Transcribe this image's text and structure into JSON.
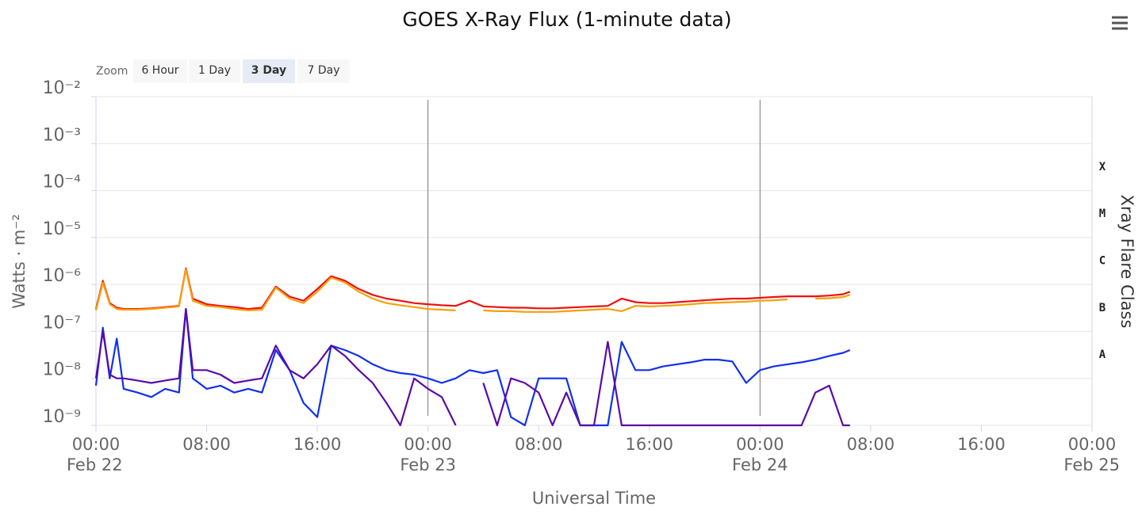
{
  "chart_data": {
    "type": "line",
    "title": "GOES X-Ray Flux (1-minute data)",
    "zoom": {
      "label": "Zoom",
      "buttons": [
        "6 Hour",
        "1 Day",
        "3 Day",
        "7 Day"
      ],
      "selected": 2
    },
    "ylabel": "Watts · m⁻²",
    "xlabel": "Universal Time",
    "y2label": "Xray Flare Class",
    "log": true,
    "grid": true,
    "xlim": [
      0,
      72
    ],
    "xticks": [
      {
        "value": 0,
        "label": "00:00"
      },
      {
        "value": 8,
        "label": "08:00"
      },
      {
        "value": 16,
        "label": "16:00"
      },
      {
        "value": 24,
        "label": "00:00"
      },
      {
        "value": 32,
        "label": "08:00"
      },
      {
        "value": 40,
        "label": "16:00"
      },
      {
        "value": 48,
        "label": "00:00"
      },
      {
        "value": 56,
        "label": "08:00"
      },
      {
        "value": 64,
        "label": "16:00"
      },
      {
        "value": 72,
        "label": "00:00"
      }
    ],
    "xdates": [
      {
        "value": 0,
        "label": "Feb 22"
      },
      {
        "value": 24,
        "label": "Feb 23"
      },
      {
        "value": 48,
        "label": "Feb 24"
      },
      {
        "value": 72,
        "label": "Feb 25"
      }
    ],
    "day_lines": [
      24,
      48
    ],
    "ylim": [
      1e-09,
      0.01
    ],
    "yticks": [
      {
        "value": 1e-09,
        "label": "10⁻⁹"
      },
      {
        "value": 1e-08,
        "label": "10⁻⁸"
      },
      {
        "value": 1e-07,
        "label": "10⁻⁷"
      },
      {
        "value": 1e-06,
        "label": "10⁻⁶"
      },
      {
        "value": 1e-05,
        "label": "10⁻⁵"
      },
      {
        "value": 0.0001,
        "label": "10⁻⁴"
      },
      {
        "value": 0.001,
        "label": "10⁻³"
      },
      {
        "value": 0.01,
        "label": "10⁻²"
      }
    ],
    "flare_classes": [
      {
        "value": 1e-08,
        "label": "A"
      },
      {
        "value": 1e-07,
        "label": "B"
      },
      {
        "value": 1e-06,
        "label": "C"
      },
      {
        "value": 1e-05,
        "label": "M"
      },
      {
        "value": 0.0001,
        "label": "X"
      }
    ],
    "x": [
      0,
      0.5,
      1,
      1.5,
      2,
      3,
      4,
      5,
      6,
      6.5,
      7,
      8,
      9,
      10,
      11,
      12,
      13,
      14,
      15,
      16,
      17,
      18,
      19,
      20,
      21,
      22,
      23,
      24,
      25,
      26,
      27,
      28,
      29,
      30,
      31,
      32,
      33,
      34,
      35,
      36,
      37,
      38,
      39,
      40,
      41,
      42,
      43,
      44,
      45,
      46,
      47,
      48,
      49,
      50,
      51,
      52,
      53,
      54,
      54.5
    ],
    "series": [
      {
        "color": "#f01010",
        "values": [
          3e-07,
          1.2e-06,
          4e-07,
          3.2e-07,
          3e-07,
          3e-07,
          3.1e-07,
          3.3e-07,
          3.5e-07,
          2.2e-06,
          5e-07,
          3.8e-07,
          3.5e-07,
          3.3e-07,
          3e-07,
          3.2e-07,
          9e-07,
          5.5e-07,
          4.5e-07,
          8e-07,
          1.5e-06,
          1.2e-06,
          8e-07,
          6e-07,
          5e-07,
          4.5e-07,
          4e-07,
          3.8e-07,
          3.6e-07,
          3.5e-07,
          4.5e-07,
          3.4e-07,
          3.3e-07,
          3.2e-07,
          3.2e-07,
          3.1e-07,
          3.1e-07,
          3.2e-07,
          3.3e-07,
          3.4e-07,
          3.5e-07,
          5e-07,
          4.2e-07,
          4e-07,
          4e-07,
          4.2e-07,
          4.4e-07,
          4.6e-07,
          4.8e-07,
          5e-07,
          5e-07,
          5.2e-07,
          5.4e-07,
          5.6e-07,
          5.6e-07,
          5.6e-07,
          5.8e-07,
          6.2e-07,
          7e-07
        ]
      },
      {
        "color": "#f5a00a",
        "values": [
          2.8e-07,
          1.1e-06,
          3.8e-07,
          3e-07,
          2.9e-07,
          2.9e-07,
          3e-07,
          3.2e-07,
          3.4e-07,
          2.1e-06,
          4.5e-07,
          3.5e-07,
          3.3e-07,
          3e-07,
          2.8e-07,
          2.9e-07,
          8.5e-07,
          5e-07,
          4e-07,
          7e-07,
          1.4e-06,
          1.1e-06,
          7e-07,
          5e-07,
          4e-07,
          3.6e-07,
          3.3e-07,
          3e-07,
          2.9e-07,
          2.8e-07,
          null,
          2.8e-07,
          2.7e-07,
          2.7e-07,
          2.6e-07,
          2.6e-07,
          2.6e-07,
          2.7e-07,
          2.8e-07,
          2.9e-07,
          3e-07,
          2.7e-07,
          3.5e-07,
          3.4e-07,
          3.5e-07,
          3.6e-07,
          3.8e-07,
          4e-07,
          4.1e-07,
          4.2e-07,
          4.3e-07,
          4.5e-07,
          4.6e-07,
          4.8e-07,
          null,
          5e-07,
          5.1e-07,
          5.4e-07,
          6e-07
        ]
      },
      {
        "color": "#1030f0",
        "values": [
          7e-09,
          1.2e-07,
          1e-08,
          7e-08,
          6e-09,
          5e-09,
          4e-09,
          6e-09,
          5e-09,
          3e-07,
          1e-08,
          6e-09,
          7e-09,
          5e-09,
          6e-09,
          5e-09,
          4e-08,
          1.5e-08,
          3e-09,
          1.5e-09,
          5e-08,
          4e-08,
          3e-08,
          2e-08,
          1.5e-08,
          1.3e-08,
          1.2e-08,
          1e-08,
          8e-09,
          1e-08,
          1.5e-08,
          1.3e-08,
          1.5e-08,
          1.5e-09,
          1e-09,
          1e-08,
          1e-08,
          1e-08,
          1e-09,
          1e-09,
          1e-09,
          6e-08,
          1.5e-08,
          1.5e-08,
          1.8e-08,
          2e-08,
          2.2e-08,
          2.5e-08,
          2.5e-08,
          2.3e-08,
          8e-09,
          1.5e-08,
          1.8e-08,
          2e-08,
          2.2e-08,
          2.5e-08,
          3e-08,
          3.5e-08,
          4e-08
        ]
      },
      {
        "color": "#5a0aa8",
        "values": [
          1e-08,
          1e-07,
          1.2e-08,
          1e-08,
          1e-08,
          9e-09,
          8e-09,
          9e-09,
          1e-08,
          3e-07,
          1.5e-08,
          1.5e-08,
          1.2e-08,
          8e-09,
          9e-09,
          1e-08,
          5e-08,
          1.5e-08,
          1e-08,
          2e-08,
          5e-08,
          3e-08,
          1.5e-08,
          8e-09,
          3e-09,
          1e-09,
          1e-08,
          6e-09,
          4e-09,
          1e-09,
          null,
          8e-09,
          1e-09,
          1e-08,
          8e-09,
          5e-09,
          1e-09,
          5e-09,
          1e-09,
          1e-09,
          6e-08,
          1e-09,
          1e-09,
          1e-09,
          1e-09,
          1e-09,
          1e-09,
          1e-09,
          1e-09,
          1e-09,
          1e-09,
          1e-09,
          1e-09,
          1e-09,
          1e-09,
          5e-09,
          7e-09,
          1e-09,
          1e-09
        ]
      }
    ]
  }
}
